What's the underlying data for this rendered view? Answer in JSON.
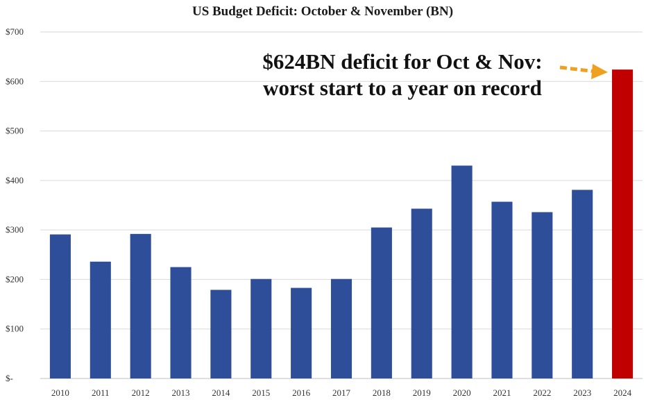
{
  "chart_data": {
    "type": "bar",
    "title": "US Budget Deficit: October & November (BN)",
    "categories": [
      "2010",
      "2011",
      "2012",
      "2013",
      "2014",
      "2015",
      "2016",
      "2017",
      "2018",
      "2019",
      "2020",
      "2021",
      "2022",
      "2023",
      "2024"
    ],
    "values": [
      291,
      236,
      292,
      225,
      179,
      201,
      183,
      201,
      305,
      343,
      430,
      357,
      336,
      381,
      624
    ],
    "ylim": [
      0,
      700
    ],
    "yticks": [
      0,
      100,
      200,
      300,
      400,
      500,
      600,
      700
    ],
    "ytick_labels": [
      "$-",
      "$100",
      "$200",
      "$300",
      "$400",
      "$500",
      "$600",
      "$700"
    ],
    "colors": {
      "default_bar": "#2f4e9a",
      "highlight_bar": "#c00000",
      "arrow": "#f0a020"
    },
    "highlight_category": "2024",
    "grid": true,
    "annotation": {
      "line1": "$624BN deficit for Oct & Nov:",
      "line2": "worst start to a year on record"
    }
  }
}
